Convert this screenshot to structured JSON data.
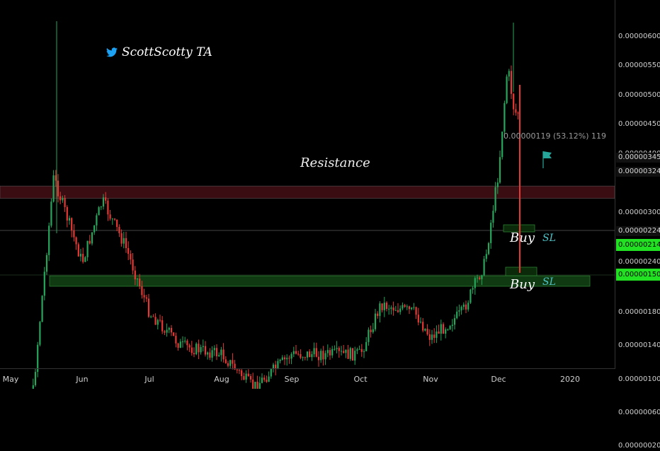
{
  "watermark": {
    "text": "ScottScotty TA",
    "icon": "twitter-bird-icon"
  },
  "annotations": {
    "resistance": "Resistance",
    "buy1": "Buy",
    "sl1": "SL",
    "buy2": "Buy",
    "sl2": "SL",
    "measure": "0.00000119 (53.12%) 119"
  },
  "highlighted_prices": {
    "resistance_top": "0.00000345",
    "resistance_bottom": "0.00000324",
    "buy_level": "0.00000224",
    "green1": "0.00000214",
    "green2": "0.00000150"
  },
  "colors": {
    "up": "#26a65b",
    "down": "#e53935",
    "resistance_zone": "#3a0d12",
    "support_zone": "#0f3a12",
    "sl_text": "#4fc3c7",
    "flag": "#26a69a"
  },
  "chart_data": {
    "type": "candlestick",
    "title": "",
    "xlabel": "",
    "ylabel": "",
    "y_ticks": [
      "0.00000600",
      "0.00000550",
      "0.00000500",
      "0.00000450",
      "0.00000400",
      "0.00000300",
      "0.00000240",
      "0.00000180",
      "0.00000140",
      "0.00000100",
      "0.00000060",
      "0.00000020"
    ],
    "x_ticks": [
      "May",
      "Jun",
      "Jul",
      "Aug",
      "Sep",
      "Oct",
      "Nov",
      "Dec",
      "2020"
    ],
    "ylim": [
      1.5e-07,
      6.05e-06
    ],
    "resistance_zone": [
      3.24e-06,
      3.45e-06
    ],
    "support_zone": [
      2.14e-06,
      2.24e-06
    ],
    "buy_zones": [
      2.24e-06,
      1.5e-06
    ],
    "approx_close_path": [
      {
        "x": "May 1",
        "y": 1e-07
      },
      {
        "x": "May 10",
        "y": 6e-07
      },
      {
        "x": "May 20",
        "y": 3.6e-06
      },
      {
        "x": "Jun 1",
        "y": 2.4e-06
      },
      {
        "x": "Jun 10",
        "y": 3.2e-06
      },
      {
        "x": "Jun 20",
        "y": 2.6e-06
      },
      {
        "x": "Jul 1",
        "y": 1.8e-06
      },
      {
        "x": "Jul 15",
        "y": 1.4e-06
      },
      {
        "x": "Aug 1",
        "y": 1.3e-06
      },
      {
        "x": "Aug 15",
        "y": 9e-07
      },
      {
        "x": "Sep 1",
        "y": 1.3e-06
      },
      {
        "x": "Sep 15",
        "y": 1.3e-06
      },
      {
        "x": "Oct 1",
        "y": 1.3e-06
      },
      {
        "x": "Oct 10",
        "y": 1.9e-06
      },
      {
        "x": "Oct 25",
        "y": 1.8e-06
      },
      {
        "x": "Nov 1",
        "y": 1.5e-06
      },
      {
        "x": "Nov 15",
        "y": 1.8e-06
      },
      {
        "x": "Nov 25",
        "y": 2.4e-06
      },
      {
        "x": "Dec 1",
        "y": 3.7e-06
      },
      {
        "x": "Dec 5",
        "y": 5.5e-06
      },
      {
        "x": "Dec 8",
        "y": 4.7e-06
      }
    ]
  }
}
